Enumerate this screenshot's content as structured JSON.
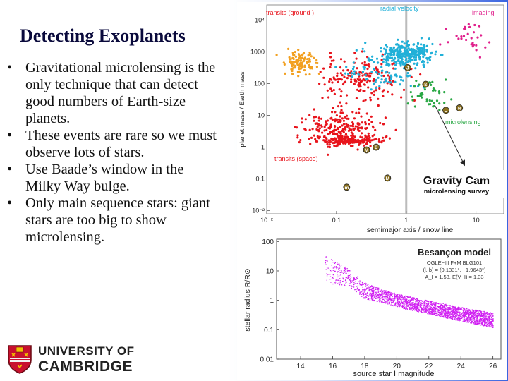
{
  "slide": {
    "title": "Detecting Exoplanets",
    "bullets": [
      "Gravitational microlensing is the only technique that can detect good numbers of Earth-size planets.",
      "These events are rare so we must observe lots of stars.",
      "Use Baade’s window in the Milky Way bulge.",
      "Only main sequence stars: giant stars are too big to show microlensing."
    ],
    "bullet_symbol": "•"
  },
  "logo": {
    "line1": "UNIVERSITY OF",
    "line2": "CAMBRIDGE"
  },
  "chart_data": [
    {
      "type": "scatter",
      "xlabel": "semimajor axis / snow line",
      "ylabel": "planet mass / Earth mass",
      "xscale": "log",
      "yscale": "log",
      "xlim": [
        0.01,
        25
      ],
      "ylim": [
        0.008,
        30000
      ],
      "x_ticks": [
        0.01,
        0.1,
        1,
        10
      ],
      "x_tick_labels": [
        "10⁻²",
        "0.1",
        "1",
        "10"
      ],
      "y_ticks": [
        0.01,
        0.1,
        1,
        10,
        100,
        1000,
        10000
      ],
      "y_tick_labels": [
        "10⁻²",
        "0.1",
        "1",
        "10",
        "100",
        "1000",
        "10⁴"
      ],
      "snow_line_x": 1,
      "colors": {
        "transit_ground": "#f2a020",
        "radial_velocity": "#20b0d8",
        "imaging": "#e0208c",
        "microlensing": "#2aa845",
        "transit_space": "#e8141c",
        "solar_planet": "#8a7020"
      },
      "annotations": [
        {
          "text": "transits  (ground )",
          "color": "#e8141c"
        },
        {
          "text": "radial  velocity",
          "color": "#20b0d8"
        },
        {
          "text": "imaging",
          "color": "#e0208c"
        },
        {
          "text": "microlensing",
          "color": "#2aa845"
        },
        {
          "text": "transits  (space)",
          "color": "#e8141c"
        }
      ],
      "solar_planets": [
        {
          "label": "J",
          "x": 1.05,
          "y": 318
        },
        {
          "label": "S",
          "x": 1.9,
          "y": 95
        },
        {
          "label": "U",
          "x": 3.7,
          "y": 14.5
        },
        {
          "label": "N",
          "x": 5.8,
          "y": 17.2
        },
        {
          "label": "V",
          "x": 0.27,
          "y": 0.82
        },
        {
          "label": "E",
          "x": 0.37,
          "y": 1.0
        },
        {
          "label": "M",
          "x": 0.54,
          "y": 0.107
        },
        {
          "label": "m",
          "x": 0.14,
          "y": 0.055
        }
      ],
      "survey_title": "Gravity Cam",
      "survey_subtitle": "microlensing survey",
      "arrow_from": {
        "x": 2.6,
        "y": 20
      },
      "arrow_to": {
        "x": 6.8,
        "y": 0.28
      }
    },
    {
      "type": "scatter",
      "title": "Besançon model",
      "info_lines": [
        "OGLE−III F+M BLG101",
        "(l, b) = (0.1331°, −1.9643°)",
        "A_I = 1.58,  E(V−I) = 1.33"
      ],
      "xlabel": "source star I magnitude",
      "ylabel": "stellar radius R/R⊙",
      "xlim": [
        12.5,
        26.5
      ],
      "ylim": [
        0.01,
        120
      ],
      "yscale": "log",
      "x_ticks": [
        14,
        16,
        18,
        20,
        22,
        24,
        26
      ],
      "y_ticks": [
        0.01,
        0.1,
        1,
        10,
        100
      ],
      "y_tick_labels": [
        "0.01",
        "0.1",
        "1",
        "10",
        "100"
      ],
      "point_color": "#d01ff2",
      "trend": [
        {
          "mag": 15.5,
          "r_min": 4,
          "r_max": 35
        },
        {
          "mag": 17,
          "r_min": 3,
          "r_max": 12
        },
        {
          "mag": 18,
          "r_min": 1.1,
          "r_max": 4
        },
        {
          "mag": 19,
          "r_min": 0.9,
          "r_max": 2.5
        },
        {
          "mag": 20,
          "r_min": 0.6,
          "r_max": 1.7
        },
        {
          "mag": 22,
          "r_min": 0.35,
          "r_max": 1.0
        },
        {
          "mag": 24,
          "r_min": 0.2,
          "r_max": 0.6
        },
        {
          "mag": 26,
          "r_min": 0.12,
          "r_max": 0.38
        }
      ]
    }
  ]
}
